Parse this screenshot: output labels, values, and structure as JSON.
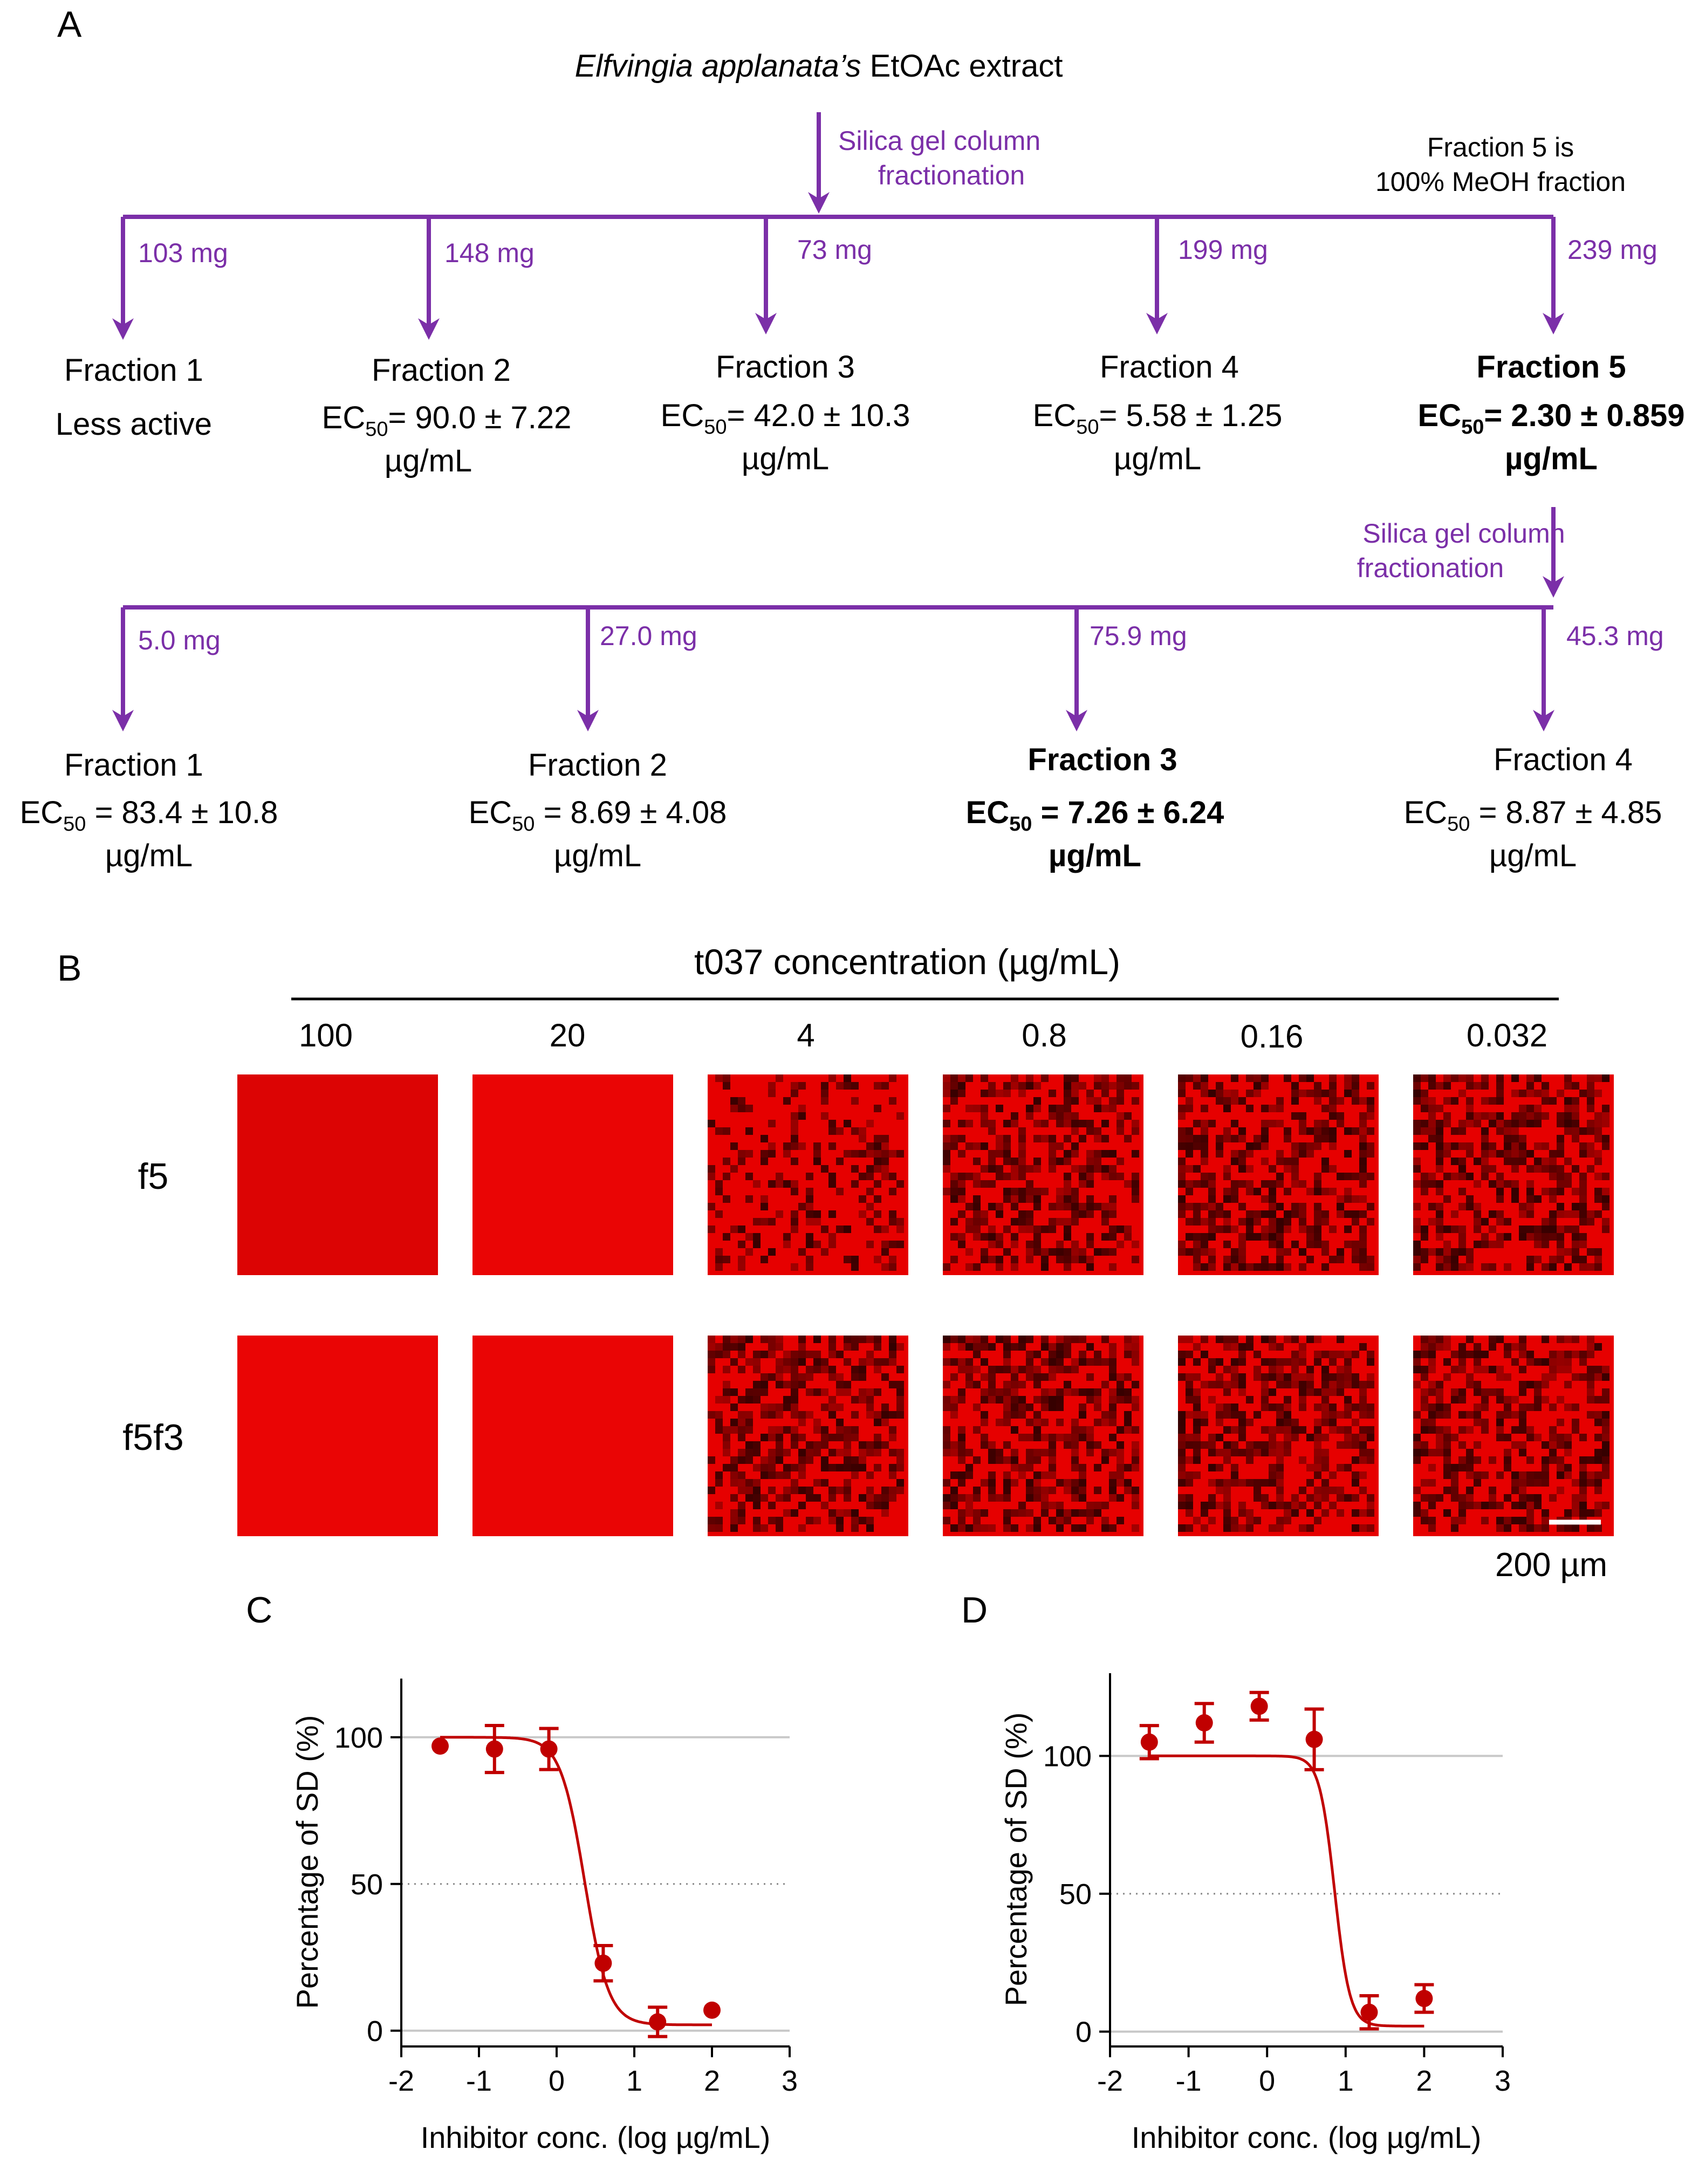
{
  "panels": {
    "a": "A",
    "b": "B",
    "c": "C",
    "d": "D"
  },
  "panel_a": {
    "extract_italic": "Elfvingia applanata’s",
    "extract_rest": " EtOAc extract",
    "step1_line1": "Silica gel column",
    "step1_line2": "fractionation",
    "note_line1": "Fraction 5 is",
    "note_line2": "100% MeOH fraction",
    "masses_top": [
      "103 mg",
      "148 mg",
      "73 mg",
      "199 mg",
      "239 mg"
    ],
    "top_fractions": [
      {
        "name": "Fraction 1",
        "line2": "Less active"
      },
      {
        "name": "Fraction 2",
        "ec_pre": "EC",
        "ec_sub": "50",
        "ec_val": "= 90.0 ± 7.22",
        "unit": "µg/mL"
      },
      {
        "name": "Fraction 3",
        "ec_pre": "EC",
        "ec_sub": "50",
        "ec_val": "= 42.0 ± 10.3",
        "unit": "µg/mL"
      },
      {
        "name": "Fraction 4",
        "ec_pre": "EC",
        "ec_sub": "50",
        "ec_val": "= 5.58 ± 1.25",
        "unit": "µg/mL"
      },
      {
        "name": "Fraction 5",
        "ec_pre": "EC",
        "ec_sub": "50",
        "ec_val": "= 2.30 ± 0.859",
        "unit": "µg/mL"
      }
    ],
    "step2_line1": "Silica gel column",
    "step2_line2": "fractionation",
    "masses_bottom": [
      "5.0 mg",
      "27.0 mg",
      "75.9 mg",
      "45.3 mg"
    ],
    "bottom_fractions": [
      {
        "name": "Fraction 1",
        "ec_pre": "EC",
        "ec_sub": "50",
        "ec_val": " = 83.4 ± 10.8",
        "unit": "µg/mL"
      },
      {
        "name": "Fraction 2",
        "ec_pre": "EC",
        "ec_sub": "50",
        "ec_val": " = 8.69 ± 4.08",
        "unit": "µg/mL"
      },
      {
        "name": "Fraction 3",
        "ec_pre": "EC",
        "ec_sub": "50",
        "ec_val": " = 7.26 ± 6.24",
        "unit": "µg/mL"
      },
      {
        "name": "Fraction 4",
        "ec_pre": "EC",
        "ec_sub": "50",
        "ec_val": " = 8.87 ± 4.85",
        "unit": "µg/mL"
      }
    ]
  },
  "panel_b": {
    "title": "t037 concentration (µg/mL)",
    "concentrations": [
      "100",
      "20",
      "4",
      "0.8",
      "0.16",
      "0.032"
    ],
    "rows": [
      "f5",
      "f5f3"
    ],
    "scale_bar": "200 µm",
    "texture_density": [
      [
        0.0,
        0.0,
        0.55,
        0.9,
        0.95,
        0.95
      ],
      [
        0.0,
        0.0,
        0.95,
        0.95,
        0.95,
        0.95
      ]
    ]
  },
  "colors": {
    "purple": "#7b2fa8",
    "curve": "#c00000",
    "tile_red": "#e60000",
    "tile_dark": "#2a0000"
  },
  "chart_data": [
    {
      "type": "scatter",
      "panel": "C",
      "xlabel": "Inhibitor conc. (log µg/mL)",
      "ylabel": "Percentage of SD (%)",
      "xlim": [
        -2,
        3
      ],
      "ylim": [
        -5,
        120
      ],
      "xticks": [
        "-2",
        "-1",
        "0",
        "1",
        "2",
        "3"
      ],
      "yticks": [
        "0",
        "50",
        "100"
      ],
      "x": [
        -1.5,
        -0.8,
        -0.1,
        0.6,
        1.3,
        2.0
      ],
      "y": [
        97,
        96,
        96,
        23,
        3,
        7
      ],
      "err": [
        0,
        8,
        7,
        6,
        5,
        0
      ],
      "fit": {
        "top": 100,
        "bottom": 2,
        "logec50": 0.36,
        "hill": 2.8
      }
    },
    {
      "type": "scatter",
      "panel": "D",
      "xlabel": "Inhibitor conc. (log µg/mL)",
      "ylabel": "Percentage of SD (%)",
      "xlim": [
        -2,
        3
      ],
      "ylim": [
        -5,
        130
      ],
      "xticks": [
        "-2",
        "-1",
        "0",
        "1",
        "2",
        "3"
      ],
      "yticks": [
        "0",
        "50",
        "100"
      ],
      "x": [
        -1.5,
        -0.8,
        -0.1,
        0.6,
        1.3,
        2.0
      ],
      "y": [
        105,
        112,
        118,
        106,
        7,
        12
      ],
      "err": [
        6,
        7,
        5,
        11,
        6,
        5
      ],
      "fit": {
        "top": 100,
        "bottom": 2,
        "logec50": 0.86,
        "hill": 4.5
      }
    }
  ]
}
